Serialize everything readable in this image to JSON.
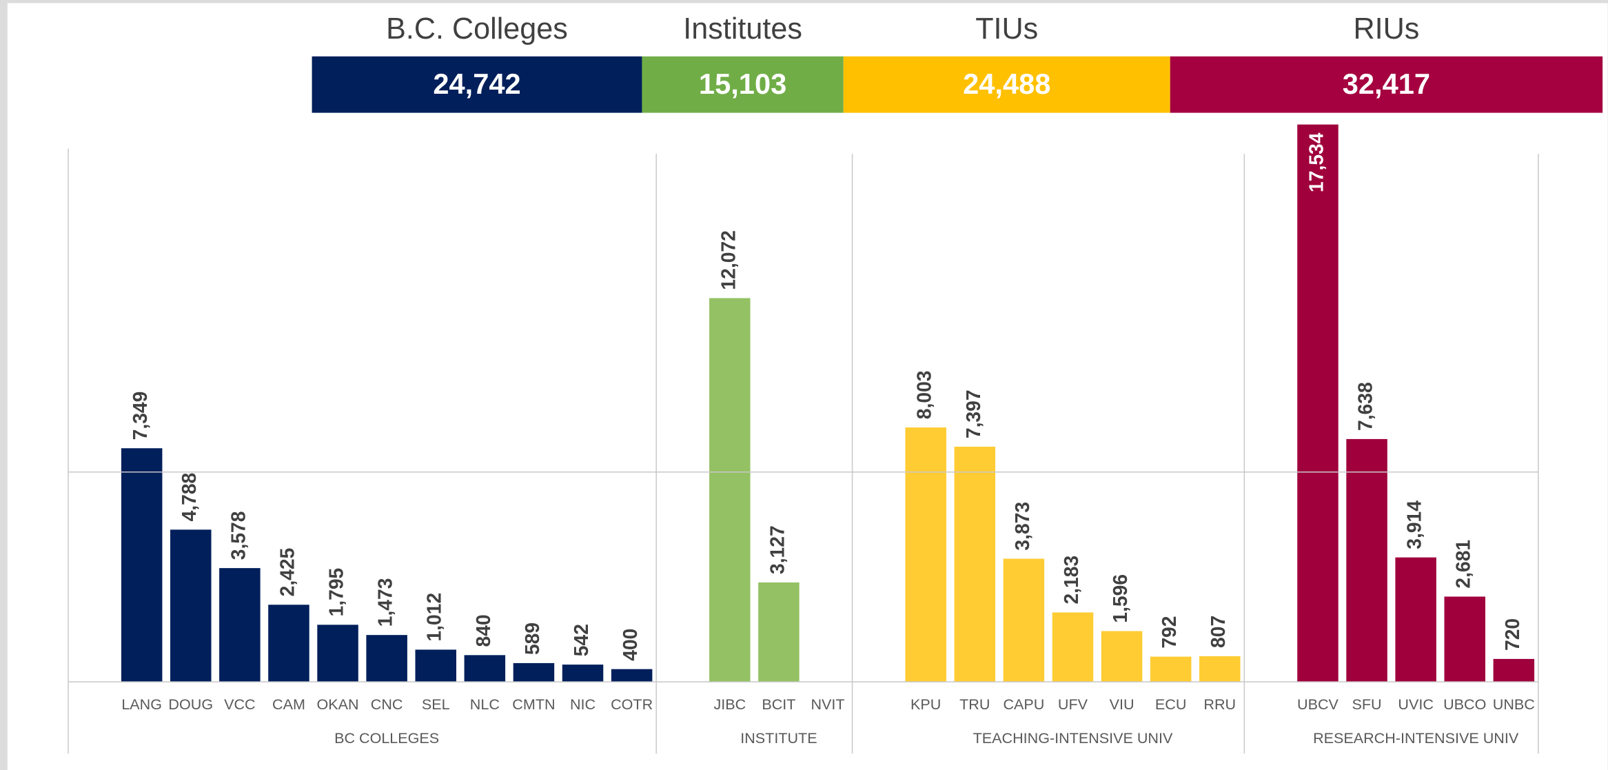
{
  "chart_data": {
    "type": "bar",
    "summary": {
      "names": [
        "B.C. Colleges",
        "Institutes",
        "TIUs",
        "RIUs"
      ],
      "values": [
        24742,
        15103,
        24488,
        32417
      ],
      "value_labels": [
        "24,742",
        "15,103",
        "24,488",
        "32,417"
      ],
      "colors": [
        "#001f5b",
        "#70ad47",
        "#ffc000",
        "#a50040"
      ]
    },
    "series": [
      {
        "name": "BC COLLEGES",
        "color": "#001f5b",
        "categories": [
          "LANG",
          "DOUG",
          "VCC",
          "CAM",
          "OKAN",
          "CNC",
          "SEL",
          "NLC",
          "CMTN",
          "NIC",
          "COTR"
        ],
        "values": [
          7349,
          4788,
          3578,
          2425,
          1795,
          1473,
          1012,
          840,
          589,
          542,
          400
        ],
        "value_labels": [
          "7,349",
          "4,788",
          "3,578",
          "2,425",
          "1,795",
          "1,473",
          "1,012",
          "840",
          "589",
          "542",
          "400"
        ]
      },
      {
        "name": "INSTITUTE",
        "color": "#94c164",
        "categories": [
          "JIBC",
          "BCIT",
          "NVIT"
        ],
        "values": [
          12072,
          3127,
          null
        ],
        "value_labels": [
          "12,072",
          "3,127",
          null
        ]
      },
      {
        "name": "TEACHING-INTENSIVE UNIV",
        "color": "#ffcc33",
        "categories": [
          "KPU",
          "TRU",
          "CAPU",
          "UFV",
          "VIU",
          "ECU",
          "RRU"
        ],
        "values": [
          8003,
          7397,
          3873,
          2183,
          1596,
          792,
          807
        ],
        "value_labels": [
          "8,003",
          "7,397",
          "3,873",
          "2,183",
          "1,596",
          "792",
          "807"
        ]
      },
      {
        "name": "RESEARCH-INTENSIVE UNIV",
        "color": "#a0003c",
        "categories": [
          "UBCV",
          "SFU",
          "UVIC",
          "UBCO",
          "UNBC"
        ],
        "values": [
          17534,
          7638,
          3914,
          2681,
          720
        ],
        "value_labels": [
          "17,534",
          "7,638",
          "3,914",
          "2,681",
          "720"
        ]
      }
    ],
    "ylim": [
      0,
      18000
    ],
    "yticks": [
      0,
      6600
    ],
    "grid": true
  }
}
